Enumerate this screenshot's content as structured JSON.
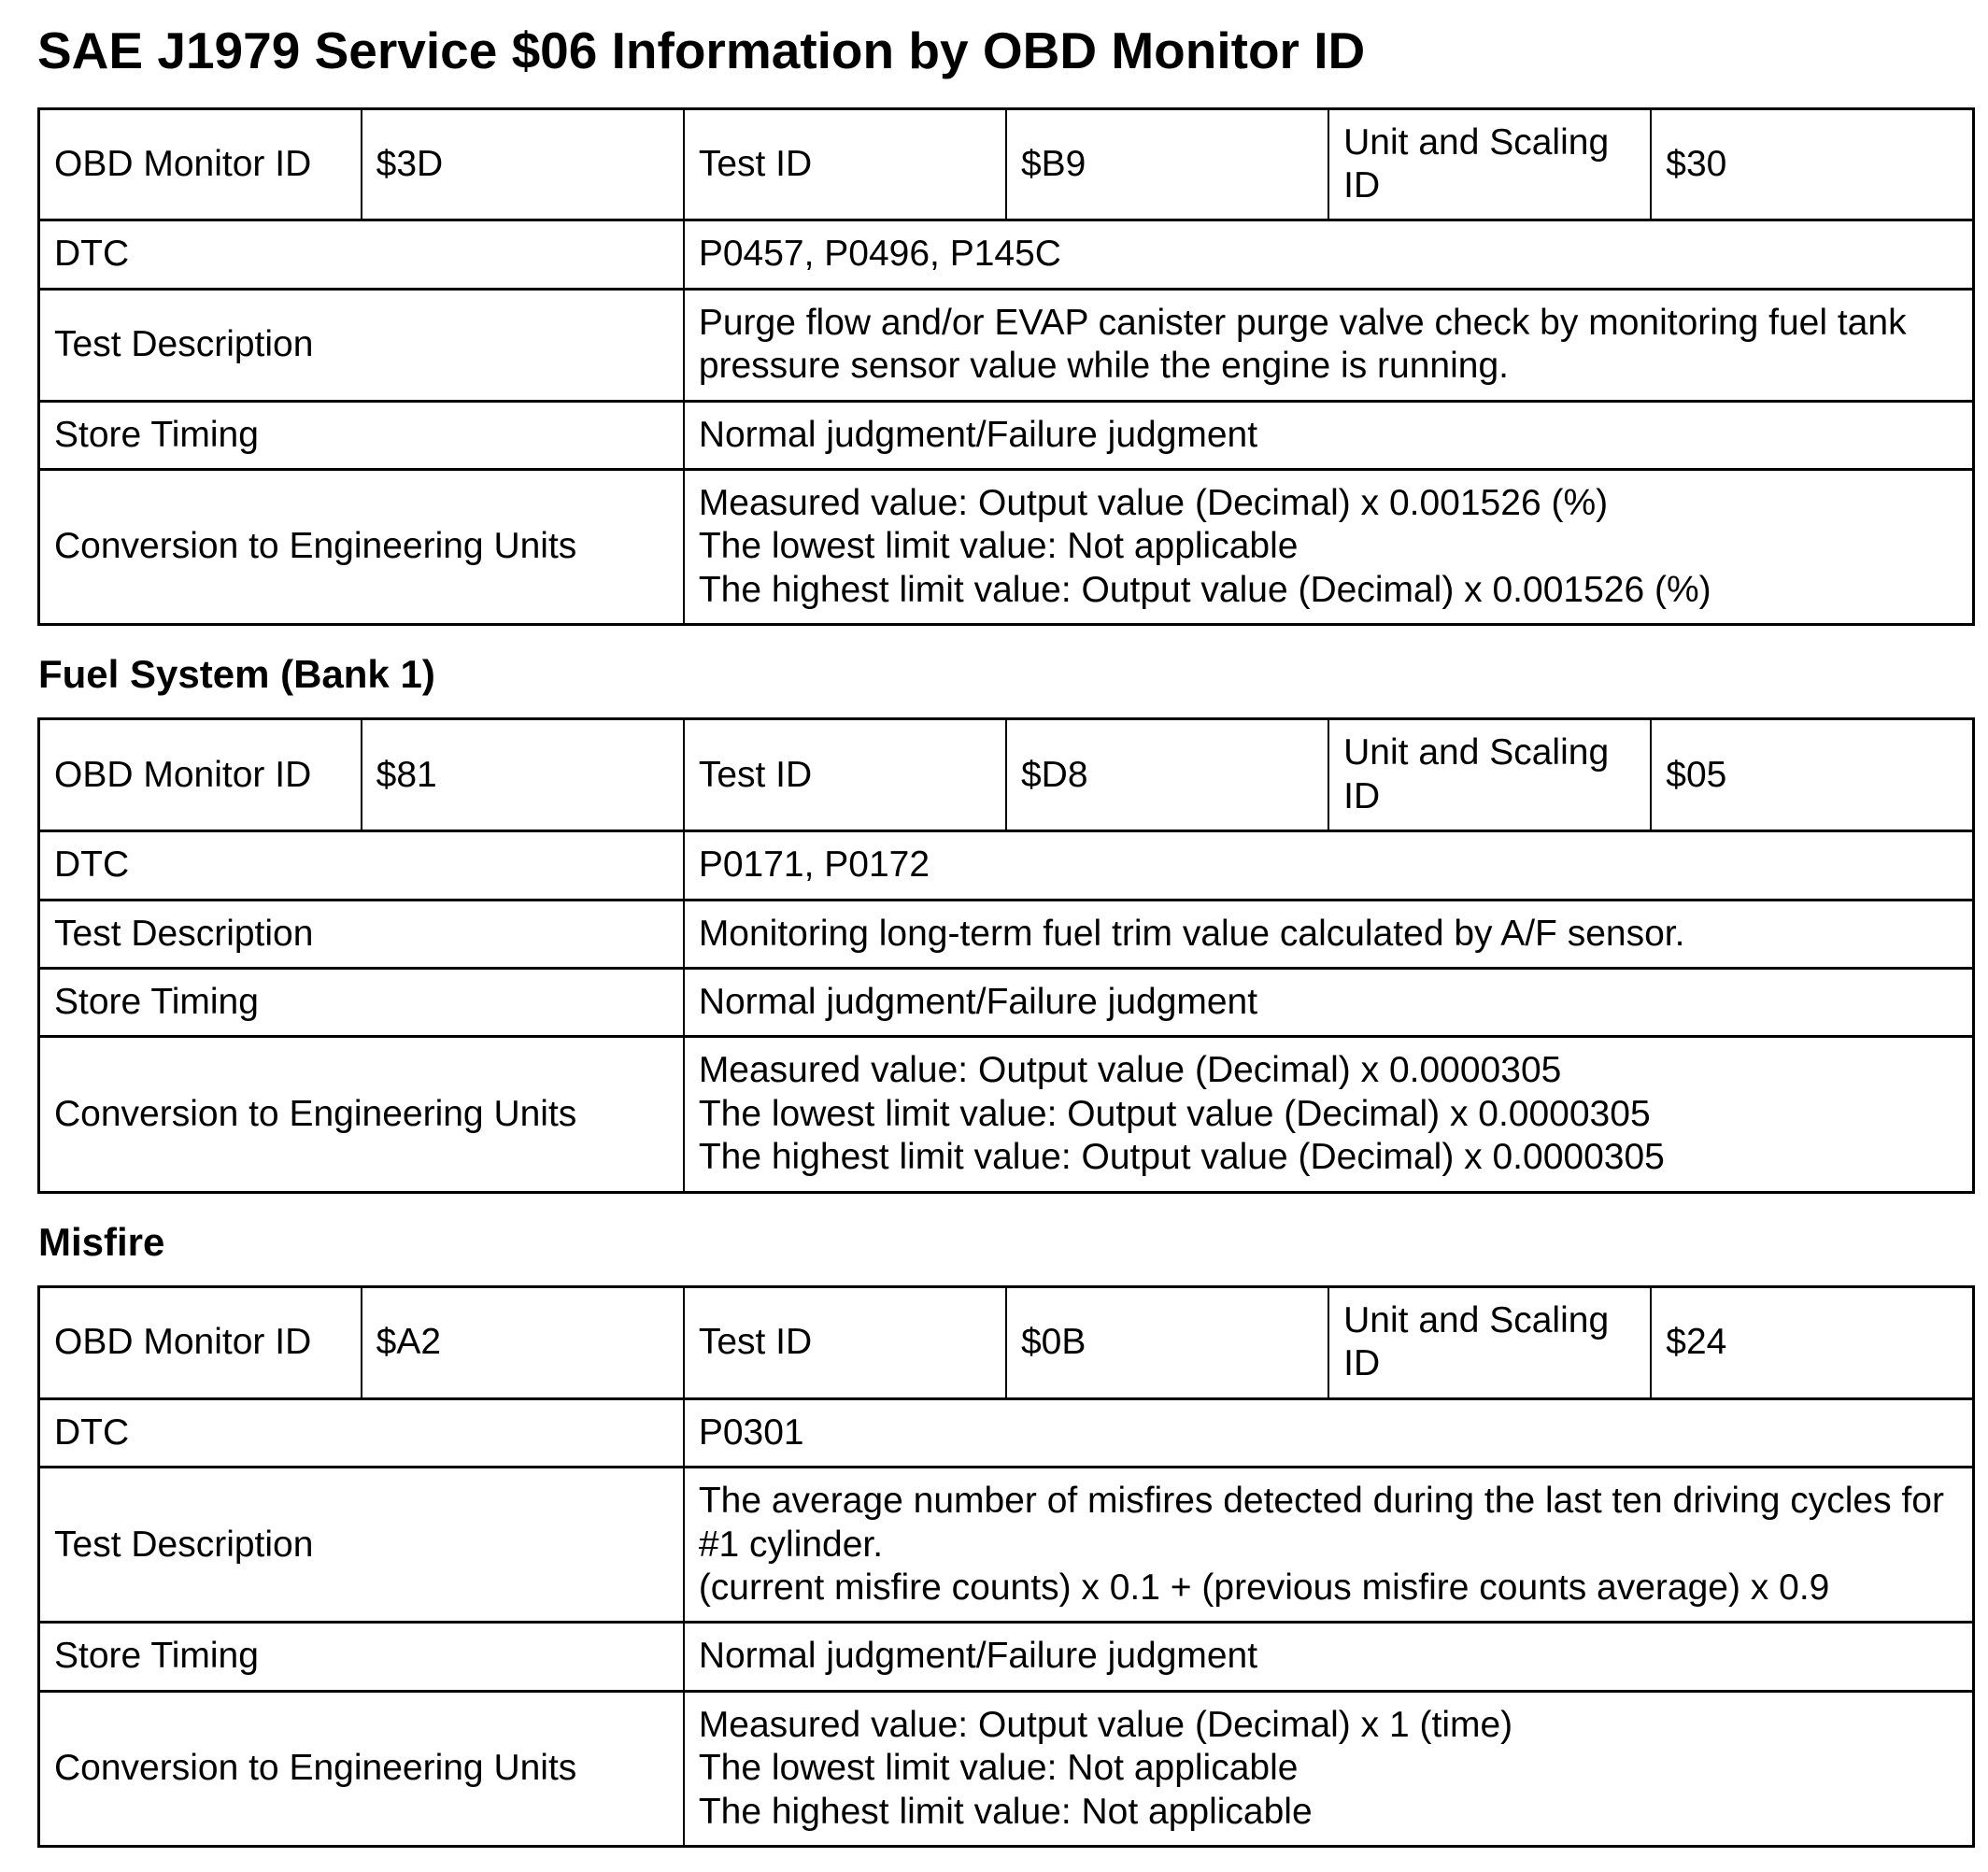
{
  "document": {
    "title": "SAE J1979 Service $06 Information by OBD Monitor ID"
  },
  "field_labels": {
    "obd_monitor_id": "OBD Monitor ID",
    "test_id": "Test ID",
    "unit_and_scaling_id": "Unit and Scaling ID",
    "dtc": "DTC",
    "test_description": "Test Description",
    "store_timing": "Store Timing",
    "conversion_to_engineering_units": "Conversion to Engineering Units"
  },
  "sections": [
    {
      "obd_monitor_id": "$3D",
      "test_id": "$B9",
      "unit_and_scaling_id": "$30",
      "dtc": "P0457, P0496, P145C",
      "test_description": "Purge flow and/or EVAP canister purge valve check by monitoring fuel tank pressure sensor value while the engine is running.",
      "store_timing": "Normal judgment/Failure judgment",
      "conversion_to_engineering_units": "Measured value: Output value (Decimal) x 0.001526 (%)\nThe lowest limit value: Not applicable\nThe highest limit value: Output value (Decimal) x 0.001526 (%)"
    },
    {
      "heading": "Fuel System (Bank 1)",
      "obd_monitor_id": "$81",
      "test_id": "$D8",
      "unit_and_scaling_id": "$05",
      "dtc": "P0171, P0172",
      "test_description": "Monitoring long-term fuel trim value calculated by A/F sensor.",
      "store_timing": "Normal judgment/Failure judgment",
      "conversion_to_engineering_units": "Measured value: Output value (Decimal) x 0.0000305\nThe lowest limit value: Output value (Decimal) x 0.0000305\nThe highest limit value: Output value (Decimal) x 0.0000305"
    },
    {
      "heading": "Misfire",
      "obd_monitor_id": "$A2",
      "test_id": "$0B",
      "unit_and_scaling_id": "$24",
      "dtc": "P0301",
      "test_description": "The average number of misfires detected during the last ten driving cycles for #1 cylinder.\n(current misfire counts) x 0.1 + (previous misfire counts average) x 0.9",
      "store_timing": "Normal judgment/Failure judgment",
      "conversion_to_engineering_units": "Measured value: Output value (Decimal) x 1 (time)\nThe lowest limit value: Not applicable\nThe highest limit value: Not applicable"
    }
  ]
}
